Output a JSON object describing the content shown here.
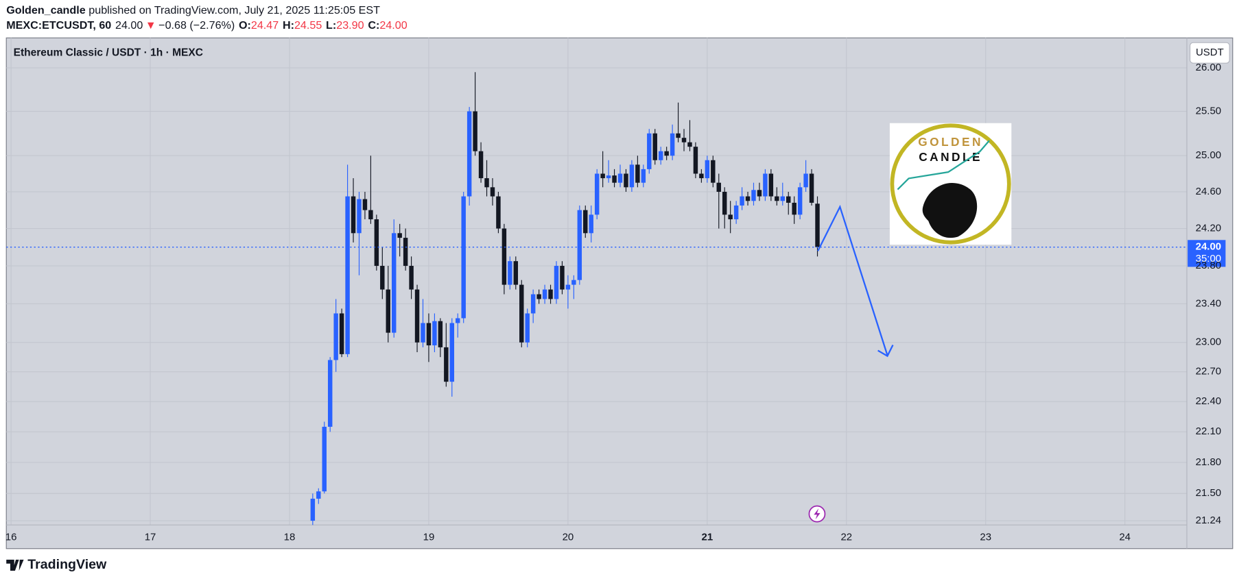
{
  "header": {
    "author": "Golden_candle",
    "published": "published on TradingView.com, July 21, 2025 11:25:05 EST",
    "symbol": "MEXC:ETCUSDT, 60",
    "last": "24.00",
    "arrow": "▼",
    "change": "−0.68 (−2.76%)",
    "o_label": "O:",
    "o": "24.47",
    "h_label": "H:",
    "h": "24.55",
    "l_label": "L:",
    "l": "23.90",
    "c_label": "C:",
    "c": "24.00"
  },
  "chart_data": {
    "type": "candlestick",
    "title": "Ethereum Classic / USDT · 1h · MEXC",
    "currency": "USDT",
    "up_color": "#2962ff",
    "down_color": "#131722",
    "log_scale": true,
    "grid": true,
    "ylim": [
      21.2,
      26.35
    ],
    "yticks": [
      {
        "value": 26,
        "label": "26.00"
      },
      {
        "value": 25.5,
        "label": "25.50"
      },
      {
        "value": 25,
        "label": "25.00"
      },
      {
        "value": 24.6,
        "label": "24.60"
      },
      {
        "value": 24.2,
        "label": "24.20"
      },
      {
        "value": 23.8,
        "label": "23.80"
      },
      {
        "value": 23.4,
        "label": "23.40"
      },
      {
        "value": 23,
        "label": "23.00"
      },
      {
        "value": 22.7,
        "label": "22.70"
      },
      {
        "value": 22.4,
        "label": "22.40"
      },
      {
        "value": 22.1,
        "label": "22.10"
      },
      {
        "value": 21.8,
        "label": "21.80"
      },
      {
        "value": 21.5,
        "label": "21.50"
      },
      {
        "value": 21.24,
        "label": "21.24"
      }
    ],
    "day_labels": [
      "16",
      "17",
      "18",
      "19",
      "20",
      "21",
      "22",
      "23",
      "24"
    ],
    "price_label": {
      "value": 24,
      "label": "24.00",
      "countdown": "35:00"
    },
    "logo_text": [
      "GOLDEN",
      "CANDLE"
    ],
    "candles": [
      [
        21.24,
        21.5,
        21.2,
        21.45
      ],
      [
        21.45,
        21.55,
        21.4,
        21.52
      ],
      [
        21.52,
        22.2,
        21.5,
        22.15
      ],
      [
        22.15,
        22.85,
        22.1,
        22.82
      ],
      [
        22.82,
        23.45,
        22.7,
        23.3
      ],
      [
        23.3,
        23.35,
        22.85,
        22.88
      ],
      [
        22.88,
        24.9,
        22.85,
        24.55
      ],
      [
        24.55,
        24.75,
        24.05,
        24.15
      ],
      [
        24.15,
        24.6,
        23.7,
        24.52
      ],
      [
        24.52,
        24.6,
        24.3,
        24.4
      ],
      [
        24.4,
        25.0,
        24.25,
        24.3
      ],
      [
        24.3,
        24.35,
        23.75,
        23.8
      ],
      [
        23.8,
        24.0,
        23.45,
        23.55
      ],
      [
        23.55,
        23.8,
        23.0,
        23.1
      ],
      [
        23.1,
        24.3,
        23.05,
        24.15
      ],
      [
        24.15,
        24.25,
        23.9,
        24.1
      ],
      [
        24.1,
        24.2,
        23.75,
        23.8
      ],
      [
        23.8,
        23.9,
        23.45,
        23.55
      ],
      [
        23.55,
        23.6,
        22.9,
        23.0
      ],
      [
        23.0,
        23.45,
        22.95,
        23.2
      ],
      [
        23.2,
        23.3,
        22.8,
        22.97
      ],
      [
        22.97,
        23.3,
        22.9,
        23.22
      ],
      [
        23.22,
        23.25,
        22.85,
        22.95
      ],
      [
        22.95,
        23.2,
        22.55,
        22.6
      ],
      [
        22.6,
        23.25,
        22.45,
        23.2
      ],
      [
        23.2,
        23.3,
        23.05,
        23.25
      ],
      [
        23.25,
        24.6,
        23.2,
        24.55
      ],
      [
        24.55,
        25.55,
        24.45,
        25.5
      ],
      [
        25.5,
        25.95,
        25.0,
        25.05
      ],
      [
        25.05,
        25.15,
        24.7,
        24.75
      ],
      [
        24.75,
        24.95,
        24.55,
        24.65
      ],
      [
        24.65,
        24.75,
        24.45,
        24.55
      ],
      [
        24.55,
        24.6,
        24.15,
        24.2
      ],
      [
        24.2,
        24.25,
        23.5,
        23.6
      ],
      [
        23.6,
        23.9,
        23.55,
        23.85
      ],
      [
        23.85,
        23.9,
        23.55,
        23.6
      ],
      [
        23.6,
        23.65,
        22.95,
        23.0
      ],
      [
        23.0,
        23.35,
        22.95,
        23.3
      ],
      [
        23.3,
        23.55,
        23.2,
        23.5
      ],
      [
        23.5,
        23.55,
        23.4,
        23.45
      ],
      [
        23.45,
        23.6,
        23.4,
        23.55
      ],
      [
        23.55,
        23.6,
        23.4,
        23.45
      ],
      [
        23.45,
        23.85,
        23.4,
        23.8
      ],
      [
        23.8,
        23.85,
        23.5,
        23.55
      ],
      [
        23.55,
        23.7,
        23.35,
        23.6
      ],
      [
        23.6,
        23.7,
        23.45,
        23.65
      ],
      [
        23.65,
        24.45,
        23.6,
        24.4
      ],
      [
        24.4,
        24.45,
        24.1,
        24.15
      ],
      [
        24.15,
        24.45,
        24.05,
        24.35
      ],
      [
        24.35,
        24.85,
        24.3,
        24.8
      ],
      [
        24.8,
        25.05,
        24.65,
        24.75
      ],
      [
        24.75,
        24.95,
        24.7,
        24.78
      ],
      [
        24.78,
        24.85,
        24.65,
        24.7
      ],
      [
        24.7,
        24.9,
        24.65,
        24.8
      ],
      [
        24.8,
        24.85,
        24.6,
        24.65
      ],
      [
        24.65,
        24.95,
        24.6,
        24.9
      ],
      [
        24.9,
        25.0,
        24.65,
        24.7
      ],
      [
        24.7,
        24.9,
        24.65,
        24.85
      ],
      [
        24.85,
        25.3,
        24.8,
        25.25
      ],
      [
        25.25,
        25.3,
        24.9,
        24.95
      ],
      [
        24.95,
        25.1,
        24.9,
        25.05
      ],
      [
        25.05,
        25.1,
        24.95,
        25.0
      ],
      [
        25.0,
        25.35,
        24.95,
        25.25
      ],
      [
        25.25,
        25.6,
        25.15,
        25.2
      ],
      [
        25.2,
        25.3,
        25.05,
        25.15
      ],
      [
        25.15,
        25.4,
        25.05,
        25.1
      ],
      [
        25.1,
        25.15,
        24.75,
        24.8
      ],
      [
        24.8,
        24.85,
        24.7,
        24.75
      ],
      [
        24.75,
        25.0,
        24.7,
        24.95
      ],
      [
        24.95,
        25.0,
        24.65,
        24.7
      ],
      [
        24.7,
        24.8,
        24.2,
        24.6
      ],
      [
        24.6,
        24.65,
        24.2,
        24.35
      ],
      [
        24.35,
        24.5,
        24.15,
        24.3
      ],
      [
        24.3,
        24.5,
        24.25,
        24.45
      ],
      [
        24.45,
        24.65,
        24.4,
        24.55
      ],
      [
        24.55,
        24.6,
        24.45,
        24.5
      ],
      [
        24.5,
        24.7,
        24.45,
        24.62
      ],
      [
        24.62,
        24.7,
        24.5,
        24.55
      ],
      [
        24.55,
        24.85,
        24.5,
        24.8
      ],
      [
        24.8,
        24.85,
        24.5,
        24.55
      ],
      [
        24.55,
        24.65,
        24.45,
        24.5
      ],
      [
        24.5,
        24.7,
        24.45,
        24.55
      ],
      [
        24.55,
        24.6,
        24.35,
        24.48
      ],
      [
        24.48,
        24.55,
        24.25,
        24.35
      ],
      [
        24.35,
        24.7,
        24.3,
        24.65
      ],
      [
        24.65,
        24.95,
        24.6,
        24.8
      ],
      [
        24.8,
        24.85,
        24.45,
        24.48
      ],
      [
        24.47,
        24.55,
        23.9,
        24.0
      ]
    ]
  },
  "footer": {
    "brand": "TradingView"
  }
}
